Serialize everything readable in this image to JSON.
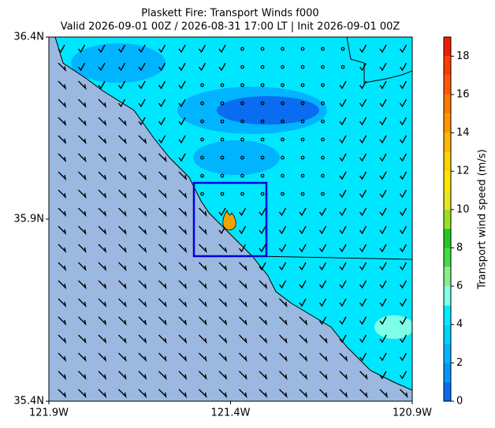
{
  "chart_data": {
    "type": "map",
    "title": "Plaskett Fire: Transport Winds f000",
    "subtitle": "Valid 2026-09-01 00Z / 2026-08-31 17:00 LT | Init 2026-09-01 00Z",
    "xlim": [
      -121.9,
      -120.9
    ],
    "xticks": [
      {
        "value": -121.9,
        "label": "121.9W"
      },
      {
        "value": -121.4,
        "label": "121.4W"
      },
      {
        "value": -120.9,
        "label": "120.9W"
      }
    ],
    "ylim": [
      35.4,
      36.4
    ],
    "yticks": [
      {
        "value": 35.4,
        "label": "35.4N"
      },
      {
        "value": 35.9,
        "label": "35.9N"
      },
      {
        "value": 36.4,
        "label": "36.4N"
      }
    ],
    "colorbar": {
      "label": "Transport wind speed (m/s)",
      "lim": [
        0,
        19
      ],
      "ticks": [
        0,
        2,
        4,
        6,
        8,
        10,
        12,
        14,
        16,
        18
      ],
      "colors": [
        "#0a6cf0",
        "#0096ff",
        "#00b4ff",
        "#00d2ff",
        "#00ecff",
        "#7effe6",
        "#88f088",
        "#44dd44",
        "#22c822",
        "#9be01e",
        "#e6e61e",
        "#ffe600",
        "#ffd200",
        "#ffb400",
        "#ff9600",
        "#ff7800",
        "#ff5a00",
        "#ff3c00",
        "#f01e00"
      ]
    }
  }
}
